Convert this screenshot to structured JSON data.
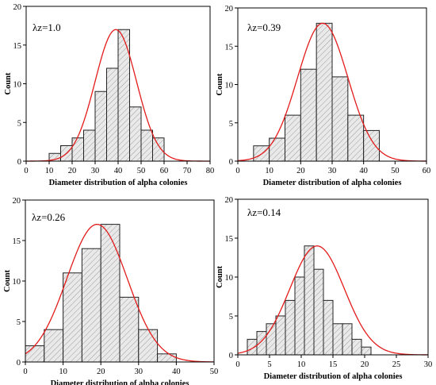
{
  "chart_data": [
    {
      "type": "bar",
      "subtype": "histogram-with-normal-fit",
      "annotation": "λz=1.0",
      "xlabel": "Diameter distribution of alpha colonies",
      "ylabel": "Count",
      "xlim": [
        0,
        80
      ],
      "ylim": [
        0,
        20
      ],
      "xticks": [
        0,
        10,
        20,
        30,
        40,
        50,
        60,
        70,
        80
      ],
      "yticks": [
        0,
        5,
        10,
        15,
        20
      ],
      "bin_width": 5,
      "bin_starts": [
        10,
        15,
        20,
        25,
        30,
        35,
        40,
        45,
        50,
        55
      ],
      "values": [
        1,
        2,
        3,
        4,
        9,
        12,
        17,
        7,
        4,
        3
      ],
      "fit": {
        "type": "normal",
        "mean": 39,
        "peak": 17,
        "sd": 9
      },
      "colors": {
        "bar_fill": "#e9e9e9",
        "bar_edge": "#222222",
        "fit_line": "#e31b1b"
      }
    },
    {
      "type": "bar",
      "subtype": "histogram-with-normal-fit",
      "annotation": "λz=0.39",
      "xlabel": "Diameter distribution of alpha colonies",
      "ylabel": "Count",
      "xlim": [
        0,
        60
      ],
      "ylim": [
        0,
        20
      ],
      "xticks": [
        0,
        10,
        20,
        30,
        40,
        50,
        60
      ],
      "yticks": [
        0,
        5,
        10,
        15,
        20
      ],
      "bin_width": 5,
      "bin_starts": [
        5,
        10,
        15,
        20,
        25,
        30,
        35,
        40
      ],
      "values": [
        2,
        3,
        6,
        12,
        18,
        11,
        6,
        4
      ],
      "fit": {
        "type": "normal",
        "mean": 27,
        "peak": 18,
        "sd": 8
      },
      "colors": {
        "bar_fill": "#e9e9e9",
        "bar_edge": "#222222",
        "fit_line": "#e31b1b"
      }
    },
    {
      "type": "bar",
      "subtype": "histogram-with-normal-fit",
      "annotation": "λz=0.26",
      "xlabel": "Diameter distribution of alpha colonies",
      "ylabel": "Count",
      "xlim": [
        0,
        50
      ],
      "ylim": [
        0,
        20
      ],
      "xticks": [
        0,
        10,
        20,
        30,
        40,
        50
      ],
      "yticks": [
        0,
        5,
        10,
        15,
        20
      ],
      "bin_width": 5,
      "bin_starts": [
        0,
        5,
        10,
        15,
        20,
        25,
        30,
        35
      ],
      "values": [
        2,
        4,
        11,
        14,
        17,
        8,
        4,
        1
      ],
      "fit": {
        "type": "normal",
        "mean": 19,
        "peak": 17,
        "sd": 8
      },
      "colors": {
        "bar_fill": "#e9e9e9",
        "bar_edge": "#222222",
        "fit_line": "#e31b1b"
      }
    },
    {
      "type": "bar",
      "subtype": "histogram-with-normal-fit",
      "annotation": "λz=0.14",
      "xlabel": "Diameter distribution of alpha colonies",
      "ylabel": "Count",
      "xlim": [
        0,
        30
      ],
      "ylim": [
        0,
        20
      ],
      "xticks": [
        0,
        5,
        10,
        15,
        20,
        25,
        30
      ],
      "yticks": [
        0,
        5,
        10,
        15,
        20
      ],
      "bin_width": 1.5,
      "bin_starts": [
        1.5,
        3,
        4.5,
        6,
        7.5,
        9,
        10.5,
        12,
        13.5,
        15,
        16.5,
        18,
        19.5
      ],
      "values": [
        2,
        3,
        4,
        5,
        7,
        10,
        14,
        11,
        7,
        4,
        4,
        2,
        1
      ],
      "fit": {
        "type": "normal",
        "mean": 12.5,
        "peak": 14,
        "sd": 4.3
      },
      "colors": {
        "bar_fill": "#e9e9e9",
        "bar_edge": "#222222",
        "fit_line": "#e31b1b"
      }
    }
  ]
}
